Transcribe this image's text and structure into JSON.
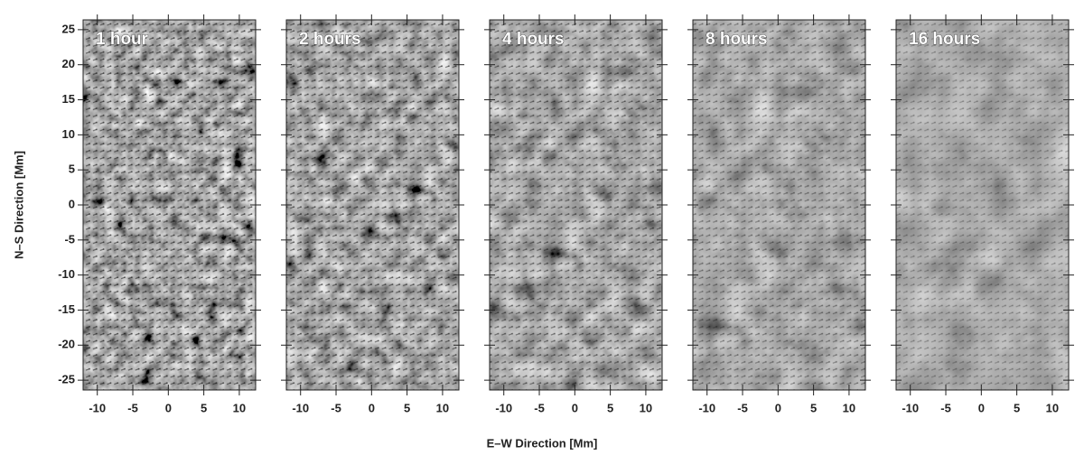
{
  "chart_data": {
    "type": "image-panels",
    "xlabel": "E–W Direction   [Mm]",
    "ylabel": "N–S Direction   [Mm]",
    "xlim": [
      -12,
      12.3
    ],
    "ylim": [
      -26.4,
      26.4
    ],
    "xticks": [
      -10,
      -5,
      0,
      5,
      10
    ],
    "yticks": [
      -25,
      -20,
      -15,
      -10,
      -5,
      0,
      5,
      10,
      15,
      20,
      25
    ],
    "panels": [
      {
        "title": "1 hour"
      },
      {
        "title": "2 hours"
      },
      {
        "title": "4 hours"
      },
      {
        "title": "8 hours"
      },
      {
        "title": "16 hours"
      }
    ]
  }
}
